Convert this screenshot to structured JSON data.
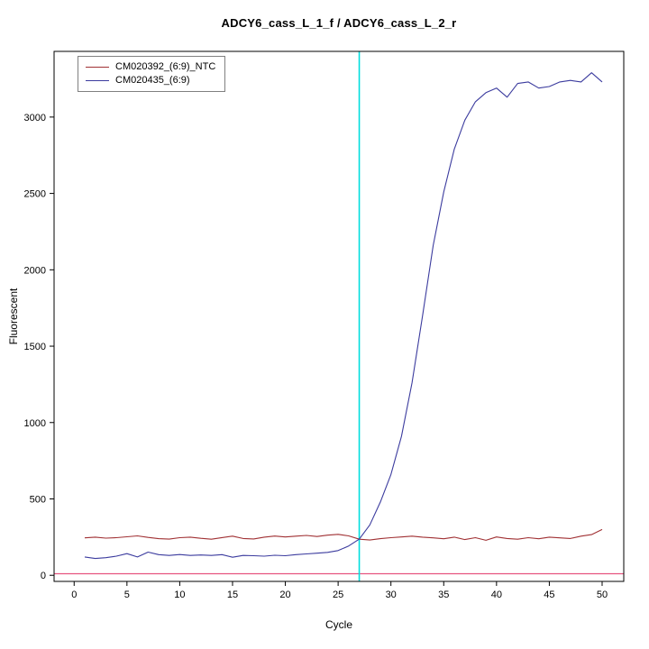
{
  "title": "ADCY6_cass_L_1_f / ADCY6_cass_L_2_r",
  "chart_data": {
    "type": "line",
    "title": "ADCY6_cass_L_1_f / ADCY6_cass_L_2_r",
    "xlabel": "Cycle",
    "ylabel": "Fluorescent",
    "grid": false,
    "legend_position": "top-left",
    "xlim": [
      -1.9,
      52.05
    ],
    "ylim": [
      -40,
      3430
    ],
    "xticks": [
      0,
      5,
      10,
      15,
      20,
      25,
      30,
      35,
      40,
      45,
      50
    ],
    "yticks": [
      0,
      500,
      1000,
      1500,
      2000,
      2500,
      3000
    ],
    "x": [
      1,
      2,
      3,
      4,
      5,
      6,
      7,
      8,
      9,
      10,
      11,
      12,
      13,
      14,
      15,
      16,
      17,
      18,
      19,
      20,
      21,
      22,
      23,
      24,
      25,
      26,
      27,
      28,
      29,
      30,
      31,
      32,
      33,
      34,
      35,
      36,
      37,
      38,
      39,
      40,
      41,
      42,
      43,
      44,
      45,
      46,
      47,
      48,
      49,
      50
    ],
    "series": [
      {
        "name": "CM020392_(6:9)_NTC",
        "color": "#a03033",
        "values": [
          245,
          250,
          243,
          246,
          252,
          258,
          248,
          240,
          237,
          246,
          250,
          242,
          236,
          247,
          256,
          241,
          238,
          250,
          257,
          251,
          256,
          261,
          254,
          263,
          268,
          258,
          236,
          231,
          240,
          246,
          251,
          256,
          250,
          245,
          239,
          250,
          234,
          246,
          229,
          251,
          241,
          236,
          246,
          239,
          250,
          245,
          241,
          256,
          266,
          300
        ]
      },
      {
        "name": "CM020435_(6:9)",
        "color": "#3b3b9e",
        "values": [
          120,
          110,
          115,
          125,
          142,
          120,
          152,
          135,
          130,
          136,
          130,
          133,
          130,
          135,
          118,
          130,
          128,
          125,
          131,
          128,
          135,
          140,
          145,
          150,
          162,
          192,
          237,
          330,
          480,
          660,
          910,
          1260,
          1700,
          2160,
          2510,
          2790,
          2980,
          3100,
          3160,
          3190,
          3130,
          3220,
          3230,
          3190,
          3200,
          3230,
          3240,
          3230,
          3290,
          3230
        ]
      }
    ],
    "threshold_line": {
      "y": 10,
      "color": "#e75480"
    },
    "ct_line": {
      "x": 27,
      "color": "#00dede"
    },
    "axis_color": "#000000"
  }
}
